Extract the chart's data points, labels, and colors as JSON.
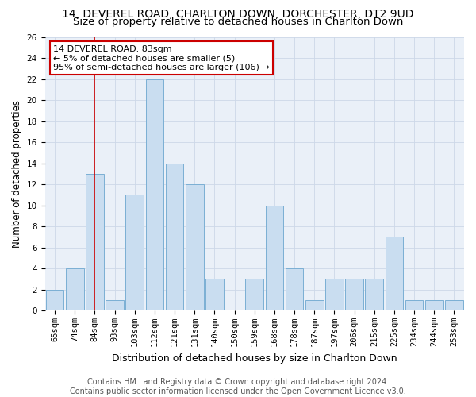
{
  "title": "14, DEVEREL ROAD, CHARLTON DOWN, DORCHESTER, DT2 9UD",
  "subtitle": "Size of property relative to detached houses in Charlton Down",
  "xlabel": "Distribution of detached houses by size in Charlton Down",
  "ylabel": "Number of detached properties",
  "categories": [
    "65sqm",
    "74sqm",
    "84sqm",
    "93sqm",
    "103sqm",
    "112sqm",
    "121sqm",
    "131sqm",
    "140sqm",
    "150sqm",
    "159sqm",
    "168sqm",
    "178sqm",
    "187sqm",
    "197sqm",
    "206sqm",
    "215sqm",
    "225sqm",
    "234sqm",
    "244sqm",
    "253sqm"
  ],
  "values": [
    2,
    4,
    13,
    1,
    11,
    22,
    14,
    12,
    3,
    0,
    3,
    10,
    4,
    1,
    3,
    3,
    3,
    7,
    1,
    1,
    1
  ],
  "bar_color": "#c9ddf0",
  "bar_edge_color": "#7bafd4",
  "highlight_index": 2,
  "highlight_line_color": "#cc0000",
  "annotation_text": "14 DEVEREL ROAD: 83sqm\n← 5% of detached houses are smaller (5)\n95% of semi-detached houses are larger (106) →",
  "annotation_box_color": "#ffffff",
  "annotation_box_edge": "#cc0000",
  "ylim": [
    0,
    26
  ],
  "yticks": [
    0,
    2,
    4,
    6,
    8,
    10,
    12,
    14,
    16,
    18,
    20,
    22,
    24,
    26
  ],
  "grid_color": "#cdd8e8",
  "footer": "Contains HM Land Registry data © Crown copyright and database right 2024.\nContains public sector information licensed under the Open Government Licence v3.0.",
  "title_fontsize": 10,
  "subtitle_fontsize": 9.5,
  "xlabel_fontsize": 9,
  "ylabel_fontsize": 8.5,
  "footer_fontsize": 7,
  "tick_fontsize": 7.5,
  "annot_fontsize": 8
}
